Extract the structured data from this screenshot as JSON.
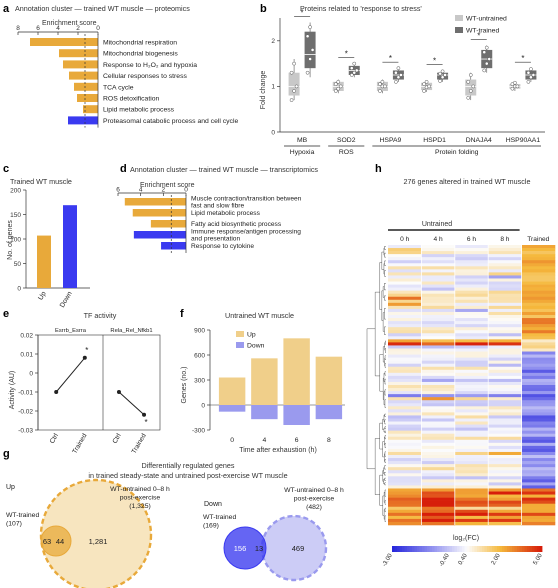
{
  "panel_letters": {
    "a": "a",
    "b": "b",
    "c": "c",
    "d": "d",
    "e": "e",
    "f": "f",
    "g": "g",
    "h": "h"
  },
  "colors": {
    "orange": "#e8a93a",
    "blue": "#3a3af0",
    "light_orange": "#f0cf8a",
    "light_blue": "#9a9aee",
    "grey_light": "#c8c8c8",
    "grey_dark": "#6e6e6e"
  },
  "chart_data": [
    {
      "id": "a",
      "type": "bar",
      "orientation": "horizontal",
      "title": "Annotation cluster — trained WT muscle — proteomics",
      "xlabel": "Enrichment score",
      "xticks": [
        "8",
        "6",
        "4",
        "2",
        "0"
      ],
      "xlim": [
        8,
        0
      ],
      "threshold": 1.3,
      "categories": [
        "Mitochondrial respiration",
        "Mitochondrial biogenesis",
        "Response to H₂O₂ and hypoxia",
        "Cellular responses to stress",
        "TCA cycle",
        "ROS detoxification",
        "Lipid metabolic process",
        "Proteasomal catabolic process and cell cycle"
      ],
      "values": [
        6.8,
        3.9,
        3.5,
        2.9,
        2.4,
        2.1,
        1.5,
        3.0
      ],
      "directions": [
        "up",
        "up",
        "up",
        "up",
        "up",
        "up",
        "up",
        "down"
      ]
    },
    {
      "id": "b",
      "type": "box",
      "title": "Proteins related to 'response to stress'",
      "ylabel": "Fold change",
      "ylim": [
        0,
        2.5
      ],
      "yticks": [
        "0",
        "1",
        "2"
      ],
      "legend": [
        "WT-untrained",
        "WT-trained"
      ],
      "categories": [
        "MB",
        "SOD2",
        "HSPA9",
        "HSPD1",
        "DNAJA4",
        "HSP90AA1"
      ],
      "groups": [
        {
          "label": "Hypoxia",
          "span": [
            0,
            0
          ]
        },
        {
          "label": "ROS",
          "span": [
            1,
            1
          ]
        },
        {
          "label": "Protein folding",
          "span": [
            2,
            5
          ]
        }
      ],
      "significance": [
        "*",
        "*",
        "*",
        "*",
        "*",
        "*"
      ],
      "untrained": [
        {
          "q1": 0.8,
          "med": 1.0,
          "q3": 1.3,
          "min": 0.7,
          "max": 1.6,
          "points": [
            0.7,
            0.9,
            1.0,
            1.3,
            1.5
          ]
        },
        {
          "q1": 0.9,
          "med": 1.0,
          "q3": 1.1,
          "min": 0.85,
          "max": 1.15,
          "points": [
            0.9,
            0.95,
            1.0,
            1.05,
            1.1
          ]
        },
        {
          "q1": 0.9,
          "med": 1.0,
          "q3": 1.1,
          "min": 0.85,
          "max": 1.15,
          "points": [
            0.9,
            1.0,
            1.0,
            1.05,
            1.1
          ]
        },
        {
          "q1": 0.92,
          "med": 1.0,
          "q3": 1.08,
          "min": 0.88,
          "max": 1.12,
          "points": [
            0.9,
            0.98,
            1.0,
            1.05,
            1.1
          ]
        },
        {
          "q1": 0.8,
          "med": 1.0,
          "q3": 1.15,
          "min": 0.7,
          "max": 1.3,
          "points": [
            0.75,
            0.9,
            1.0,
            1.1,
            1.25
          ]
        },
        {
          "q1": 0.95,
          "med": 1.0,
          "q3": 1.05,
          "min": 0.9,
          "max": 1.1,
          "points": [
            0.95,
            1.0,
            1.0,
            1.05,
            1.08
          ]
        }
      ],
      "trained": [
        {
          "q1": 1.4,
          "med": 1.7,
          "q3": 2.2,
          "min": 1.2,
          "max": 2.4,
          "points": [
            1.3,
            1.6,
            1.8,
            2.1,
            2.3
          ]
        },
        {
          "q1": 1.25,
          "med": 1.35,
          "q3": 1.45,
          "min": 1.2,
          "max": 1.5,
          "points": [
            1.25,
            1.3,
            1.35,
            1.4,
            1.5
          ]
        },
        {
          "q1": 1.15,
          "med": 1.25,
          "q3": 1.35,
          "min": 1.1,
          "max": 1.4,
          "points": [
            1.1,
            1.2,
            1.25,
            1.3,
            1.4
          ]
        },
        {
          "q1": 1.15,
          "med": 1.25,
          "q3": 1.3,
          "min": 1.1,
          "max": 1.35,
          "points": [
            1.12,
            1.2,
            1.25,
            1.28,
            1.33
          ]
        },
        {
          "q1": 1.4,
          "med": 1.6,
          "q3": 1.8,
          "min": 1.3,
          "max": 1.9,
          "points": [
            1.35,
            1.5,
            1.6,
            1.75,
            1.85
          ]
        },
        {
          "q1": 1.15,
          "med": 1.25,
          "q3": 1.35,
          "min": 1.1,
          "max": 1.4,
          "points": [
            1.1,
            1.2,
            1.25,
            1.3,
            1.38
          ]
        }
      ]
    },
    {
      "id": "c",
      "type": "bar",
      "title": "Trained WT muscle",
      "ylabel": "No. of genes",
      "ylim": [
        0,
        200
      ],
      "yticks": [
        "0",
        "50",
        "100",
        "150",
        "200"
      ],
      "categories": [
        "Up",
        "Down"
      ],
      "values": [
        107,
        169
      ]
    },
    {
      "id": "d",
      "type": "bar",
      "orientation": "horizontal",
      "title": "Annotation cluster — trained WT muscle — transcriptomics",
      "xlabel": "Enrichment score",
      "xticks": [
        "6",
        "4",
        "2",
        "0"
      ],
      "xlim": [
        6,
        0
      ],
      "threshold": 1.3,
      "categories": [
        "Muscle contraction/transition between fast and slow fibre",
        "Lipid metabolic process",
        "Fatty acid biosynthetic process",
        "Immune response/antigen processing and presentation",
        "Response to cytokine"
      ],
      "label_lines": [
        [
          "Muscle contraction/transition between",
          "fast and slow fibre"
        ],
        [
          "Lipid metabolic process"
        ],
        [
          "Fatty acid biosynthetic process"
        ],
        [
          "Immune response/antigen processing",
          "and presentation"
        ],
        [
          "Response to cytokine"
        ]
      ],
      "values": [
        5.4,
        4.7,
        3.1,
        4.6,
        2.2
      ],
      "directions": [
        "up",
        "up",
        "up",
        "down",
        "down"
      ]
    },
    {
      "id": "e",
      "type": "line",
      "title": "TF activity",
      "ylabel": "Activity (AU)",
      "ylim": [
        -0.03,
        0.02
      ],
      "yticks": [
        "0.02",
        "0.01",
        "0",
        "-0.01",
        "-0.02",
        "-0.03"
      ],
      "series": [
        {
          "name": "Esrrb_Esrra",
          "x": [
            "Ctrl",
            "Trained"
          ],
          "values": [
            -0.01,
            0.008
          ],
          "sig": "*"
        },
        {
          "name": "Rela_Rel_Nfkb1",
          "x": [
            "Ctrl",
            "Trained"
          ],
          "values": [
            -0.01,
            -0.022
          ],
          "sig": "*"
        }
      ]
    },
    {
      "id": "f",
      "type": "bar",
      "title": "Untrained WT muscle",
      "ylabel": "Genes (no.)",
      "xlabel": "Time after exhaustion (h)",
      "ylim": [
        -300,
        900
      ],
      "yticks": [
        "900",
        "600",
        "300",
        "0",
        "-300"
      ],
      "categories": [
        "0",
        "4",
        "6",
        "8"
      ],
      "legend": [
        "Up",
        "Down"
      ],
      "series": [
        {
          "name": "Up",
          "values": [
            330,
            560,
            800,
            580
          ]
        },
        {
          "name": "Down",
          "values": [
            -80,
            -170,
            -240,
            -170
          ]
        }
      ]
    },
    {
      "id": "g",
      "type": "venn",
      "title_lines": [
        "Differentially regulated genes",
        "in trained steady-state and untrained post-exercise WT muscle"
      ],
      "sets": [
        {
          "panel": "Up",
          "a_lines": [
            "WT-trained",
            "(107)"
          ],
          "b_lines": [
            "WT-untrained 0–8 h",
            "post-exercise",
            "(1,325)"
          ],
          "only_a": "63",
          "overlap": "44",
          "only_b": "1,281"
        },
        {
          "panel": "Down",
          "a_lines": [
            "WT-trained",
            "(169)"
          ],
          "b_lines": [
            "WT-untrained 0–8 h",
            "post-exercise",
            "(482)"
          ],
          "only_a": "156",
          "overlap": "13",
          "only_b": "469"
        }
      ]
    },
    {
      "id": "h",
      "type": "heatmap",
      "title": "276 genes altered in trained WT muscle",
      "group_label": "Untrained",
      "columns": [
        "0 h",
        "4 h",
        "6 h",
        "8 h",
        "Trained"
      ],
      "colorbar_label": "log₂(FC)",
      "colorbar_ticks": [
        "-3.00",
        "-0.40",
        "0.40",
        "2.00",
        "5.00"
      ]
    }
  ]
}
